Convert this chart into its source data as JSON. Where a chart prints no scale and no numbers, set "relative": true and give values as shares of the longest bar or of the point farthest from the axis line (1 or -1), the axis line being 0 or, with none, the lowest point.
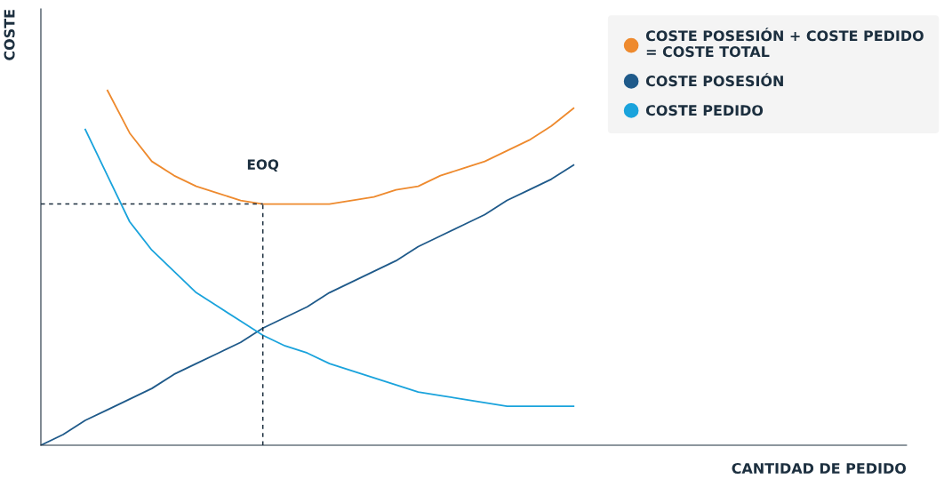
{
  "chart_data": {
    "type": "line",
    "relative": true,
    "xlabel": "CANTIDAD DE PEDIDO",
    "ylabel": "COSTE",
    "categories": [
      null,
      null,
      null,
      null,
      null,
      null,
      null,
      null,
      null,
      null,
      null,
      null,
      null,
      null,
      null,
      null,
      null,
      null,
      null,
      null,
      null,
      null,
      null,
      null,
      null,
      null,
      null,
      null,
      null,
      null,
      null,
      null,
      null,
      null,
      null,
      null,
      null,
      null,
      null,
      null
    ],
    "series": [
      {
        "name": "COSTE POSESIÓN + COSTE PEDIDO\n= COSTE TOTAL",
        "color": "#ee8a2e",
        "values": [
          null,
          null,
          null,
          1.0,
          0.88,
          0.8,
          0.76,
          0.73,
          0.71,
          0.69,
          0.68,
          0.68,
          0.68,
          0.68,
          0.69,
          0.7,
          0.72,
          0.73,
          0.76,
          0.78,
          0.8,
          0.83,
          0.86,
          0.9,
          0.95,
          null,
          null,
          null,
          null,
          null,
          null,
          null,
          null,
          null,
          null,
          null,
          null,
          null,
          null,
          null
        ]
      },
      {
        "name": "COSTE POSESIÓN",
        "color": "#1f5a8a",
        "values": [
          0,
          0.03,
          0.07,
          0.1,
          0.13,
          0.16,
          0.2,
          0.23,
          0.26,
          0.29,
          0.33,
          0.36,
          0.39,
          0.43,
          0.46,
          0.49,
          0.52,
          0.56,
          0.59,
          0.62,
          0.65,
          0.69,
          0.72,
          0.75,
          0.79,
          null,
          null,
          null,
          null,
          null,
          null,
          null,
          null,
          null,
          null,
          null,
          null,
          null,
          null,
          null
        ]
      },
      {
        "name": "COSTE PEDIDO",
        "color": "#1aa3dc",
        "values": [
          null,
          null,
          0.89,
          0.76,
          0.63,
          0.55,
          0.49,
          0.43,
          0.39,
          0.35,
          0.31,
          0.28,
          0.26,
          0.23,
          0.21,
          0.19,
          0.17,
          0.15,
          0.14,
          0.13,
          0.12,
          0.11,
          0.11,
          0.11,
          0.11,
          null,
          null,
          null,
          null,
          null,
          null,
          null,
          null,
          null,
          null,
          null,
          null,
          null,
          null,
          null
        ]
      }
    ],
    "ref_lines": [
      {
        "axis": "y",
        "value": 0.68,
        "color": "#1c2f3f",
        "line_style": "dashed"
      }
    ],
    "annotations": [
      "EOQ"
    ],
    "legend": "top right",
    "grid": false
  }
}
